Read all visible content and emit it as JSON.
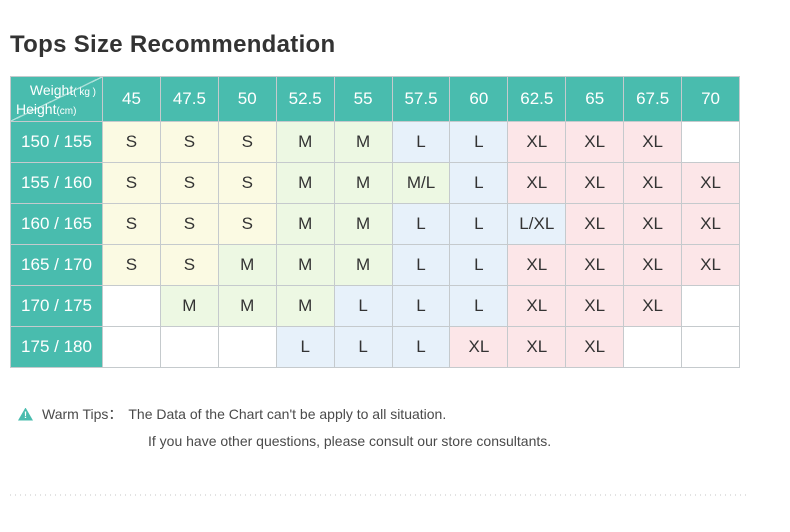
{
  "title": "Tops Size Recommendation",
  "table": {
    "corner": {
      "weight_label": "Weight",
      "weight_unit": "( kg )",
      "height_label": "Height",
      "height_unit": "(cm)"
    }
  },
  "chart_data": {
    "type": "table",
    "title": "Tops Size Recommendation",
    "columns_weights_kg": [
      "45",
      "47.5",
      "50",
      "52.5",
      "55",
      "57.5",
      "60",
      "62.5",
      "65",
      "67.5",
      "70"
    ],
    "rows_heights_cm": [
      "150 / 155",
      "155 / 160",
      "160 / 165",
      "165 / 170",
      "170 / 175",
      "175 / 180"
    ],
    "sizes": [
      [
        "S",
        "S",
        "S",
        "M",
        "M",
        "L",
        "L",
        "XL",
        "XL",
        "XL",
        ""
      ],
      [
        "S",
        "S",
        "S",
        "M",
        "M",
        "M/L",
        "L",
        "XL",
        "XL",
        "XL",
        "XL"
      ],
      [
        "S",
        "S",
        "S",
        "M",
        "M",
        "L",
        "L",
        "L/XL",
        "XL",
        "XL",
        "XL"
      ],
      [
        "S",
        "S",
        "M",
        "M",
        "M",
        "L",
        "L",
        "XL",
        "XL",
        "XL",
        "XL"
      ],
      [
        "",
        "M",
        "M",
        "M",
        "L",
        "L",
        "L",
        "XL",
        "XL",
        "XL",
        ""
      ],
      [
        "",
        "",
        "",
        "L",
        "L",
        "L",
        "XL",
        "XL",
        "XL",
        "",
        ""
      ]
    ],
    "size_color_classes": {
      "S": "c-s",
      "M": "c-m",
      "M/L": "c-m",
      "L": "c-l",
      "L/XL": "c-l",
      "XL": "c-xl",
      "": "c-empty"
    }
  },
  "colors": {
    "header_teal": "#49bcae",
    "cell_s_yellow": "#fbfae3",
    "cell_m_green": "#edf8e3",
    "cell_l_blue": "#e7f1fa",
    "cell_xl_pink": "#fce6e8",
    "grid_line": "#c5cacd",
    "warning_icon_teal": "#49bcae",
    "text_dark": "#333333"
  },
  "tips": {
    "icon": "warning-triangle-icon",
    "label": "Warm Tips：",
    "line1": "The Data of the Chart can't be apply to all situation.",
    "line2": "If you have other questions, please consult our store consultants."
  }
}
